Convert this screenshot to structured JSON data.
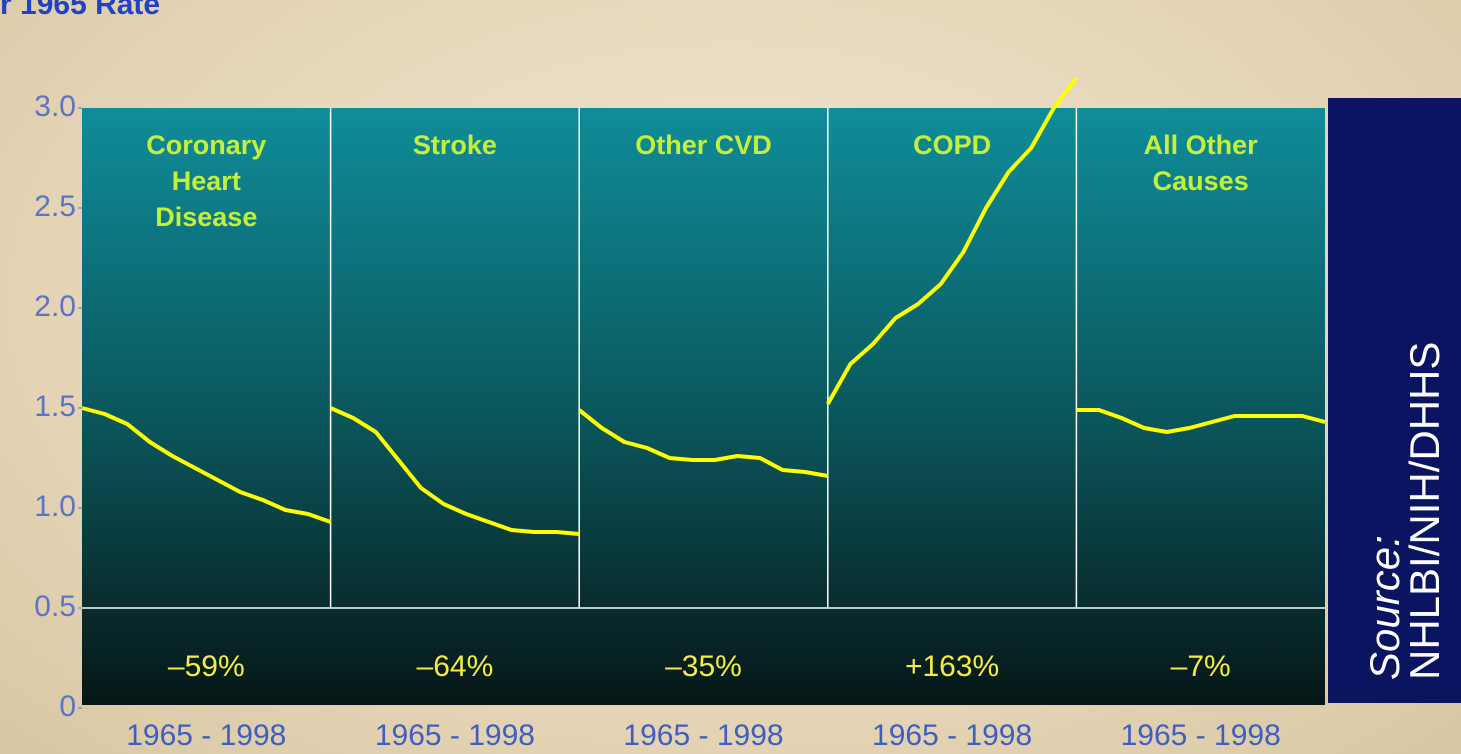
{
  "chart_data": {
    "type": "line",
    "title": "r 1965 Rate",
    "x": [
      1965,
      1968,
      1971,
      1974,
      1977,
      1980,
      1983,
      1986,
      1989,
      1992,
      1995,
      1998
    ],
    "xlim": [
      1965,
      1998
    ],
    "x_label": "1965 - 1998",
    "ylim": [
      0,
      3.0
    ],
    "yticks": [
      0,
      {
        "value": 0.5,
        "label": "0.5"
      },
      {
        "value": 1.0,
        "label": "1.0"
      },
      {
        "value": 1.5,
        "label": "1.5"
      },
      {
        "value": 2.0,
        "label": "2.0"
      },
      {
        "value": 2.5,
        "label": "2.5"
      },
      {
        "value": 3.0,
        "label": "3.0"
      }
    ],
    "color": "#ffff00",
    "series": [
      {
        "name": "Coronary Heart Disease",
        "change": "–59%",
        "values": [
          1.5,
          1.47,
          1.42,
          1.33,
          1.26,
          1.2,
          1.14,
          1.08,
          1.04,
          0.99,
          0.97,
          0.93
        ]
      },
      {
        "name": "Stroke",
        "change": "–64%",
        "values": [
          1.5,
          1.45,
          1.38,
          1.24,
          1.1,
          1.02,
          0.97,
          0.93,
          0.89,
          0.88,
          0.88,
          0.87
        ]
      },
      {
        "name": "Other CVD",
        "change": "–35%",
        "values": [
          1.49,
          1.4,
          1.33,
          1.3,
          1.25,
          1.24,
          1.24,
          1.26,
          1.25,
          1.19,
          1.18,
          1.16
        ]
      },
      {
        "name": "COPD",
        "change": "+163%",
        "values": [
          1.52,
          1.72,
          1.82,
          1.95,
          2.02,
          2.12,
          2.28,
          2.5,
          2.68,
          2.8,
          3.0,
          3.15
        ]
      },
      {
        "name": "All Other Causes",
        "change": "–7%",
        "values": [
          1.49,
          1.49,
          1.45,
          1.4,
          1.38,
          1.4,
          1.43,
          1.46,
          1.46,
          1.46,
          1.46,
          1.43
        ]
      }
    ],
    "source_label": "Source:",
    "source": "NHLBI/NIH/DHHS"
  }
}
